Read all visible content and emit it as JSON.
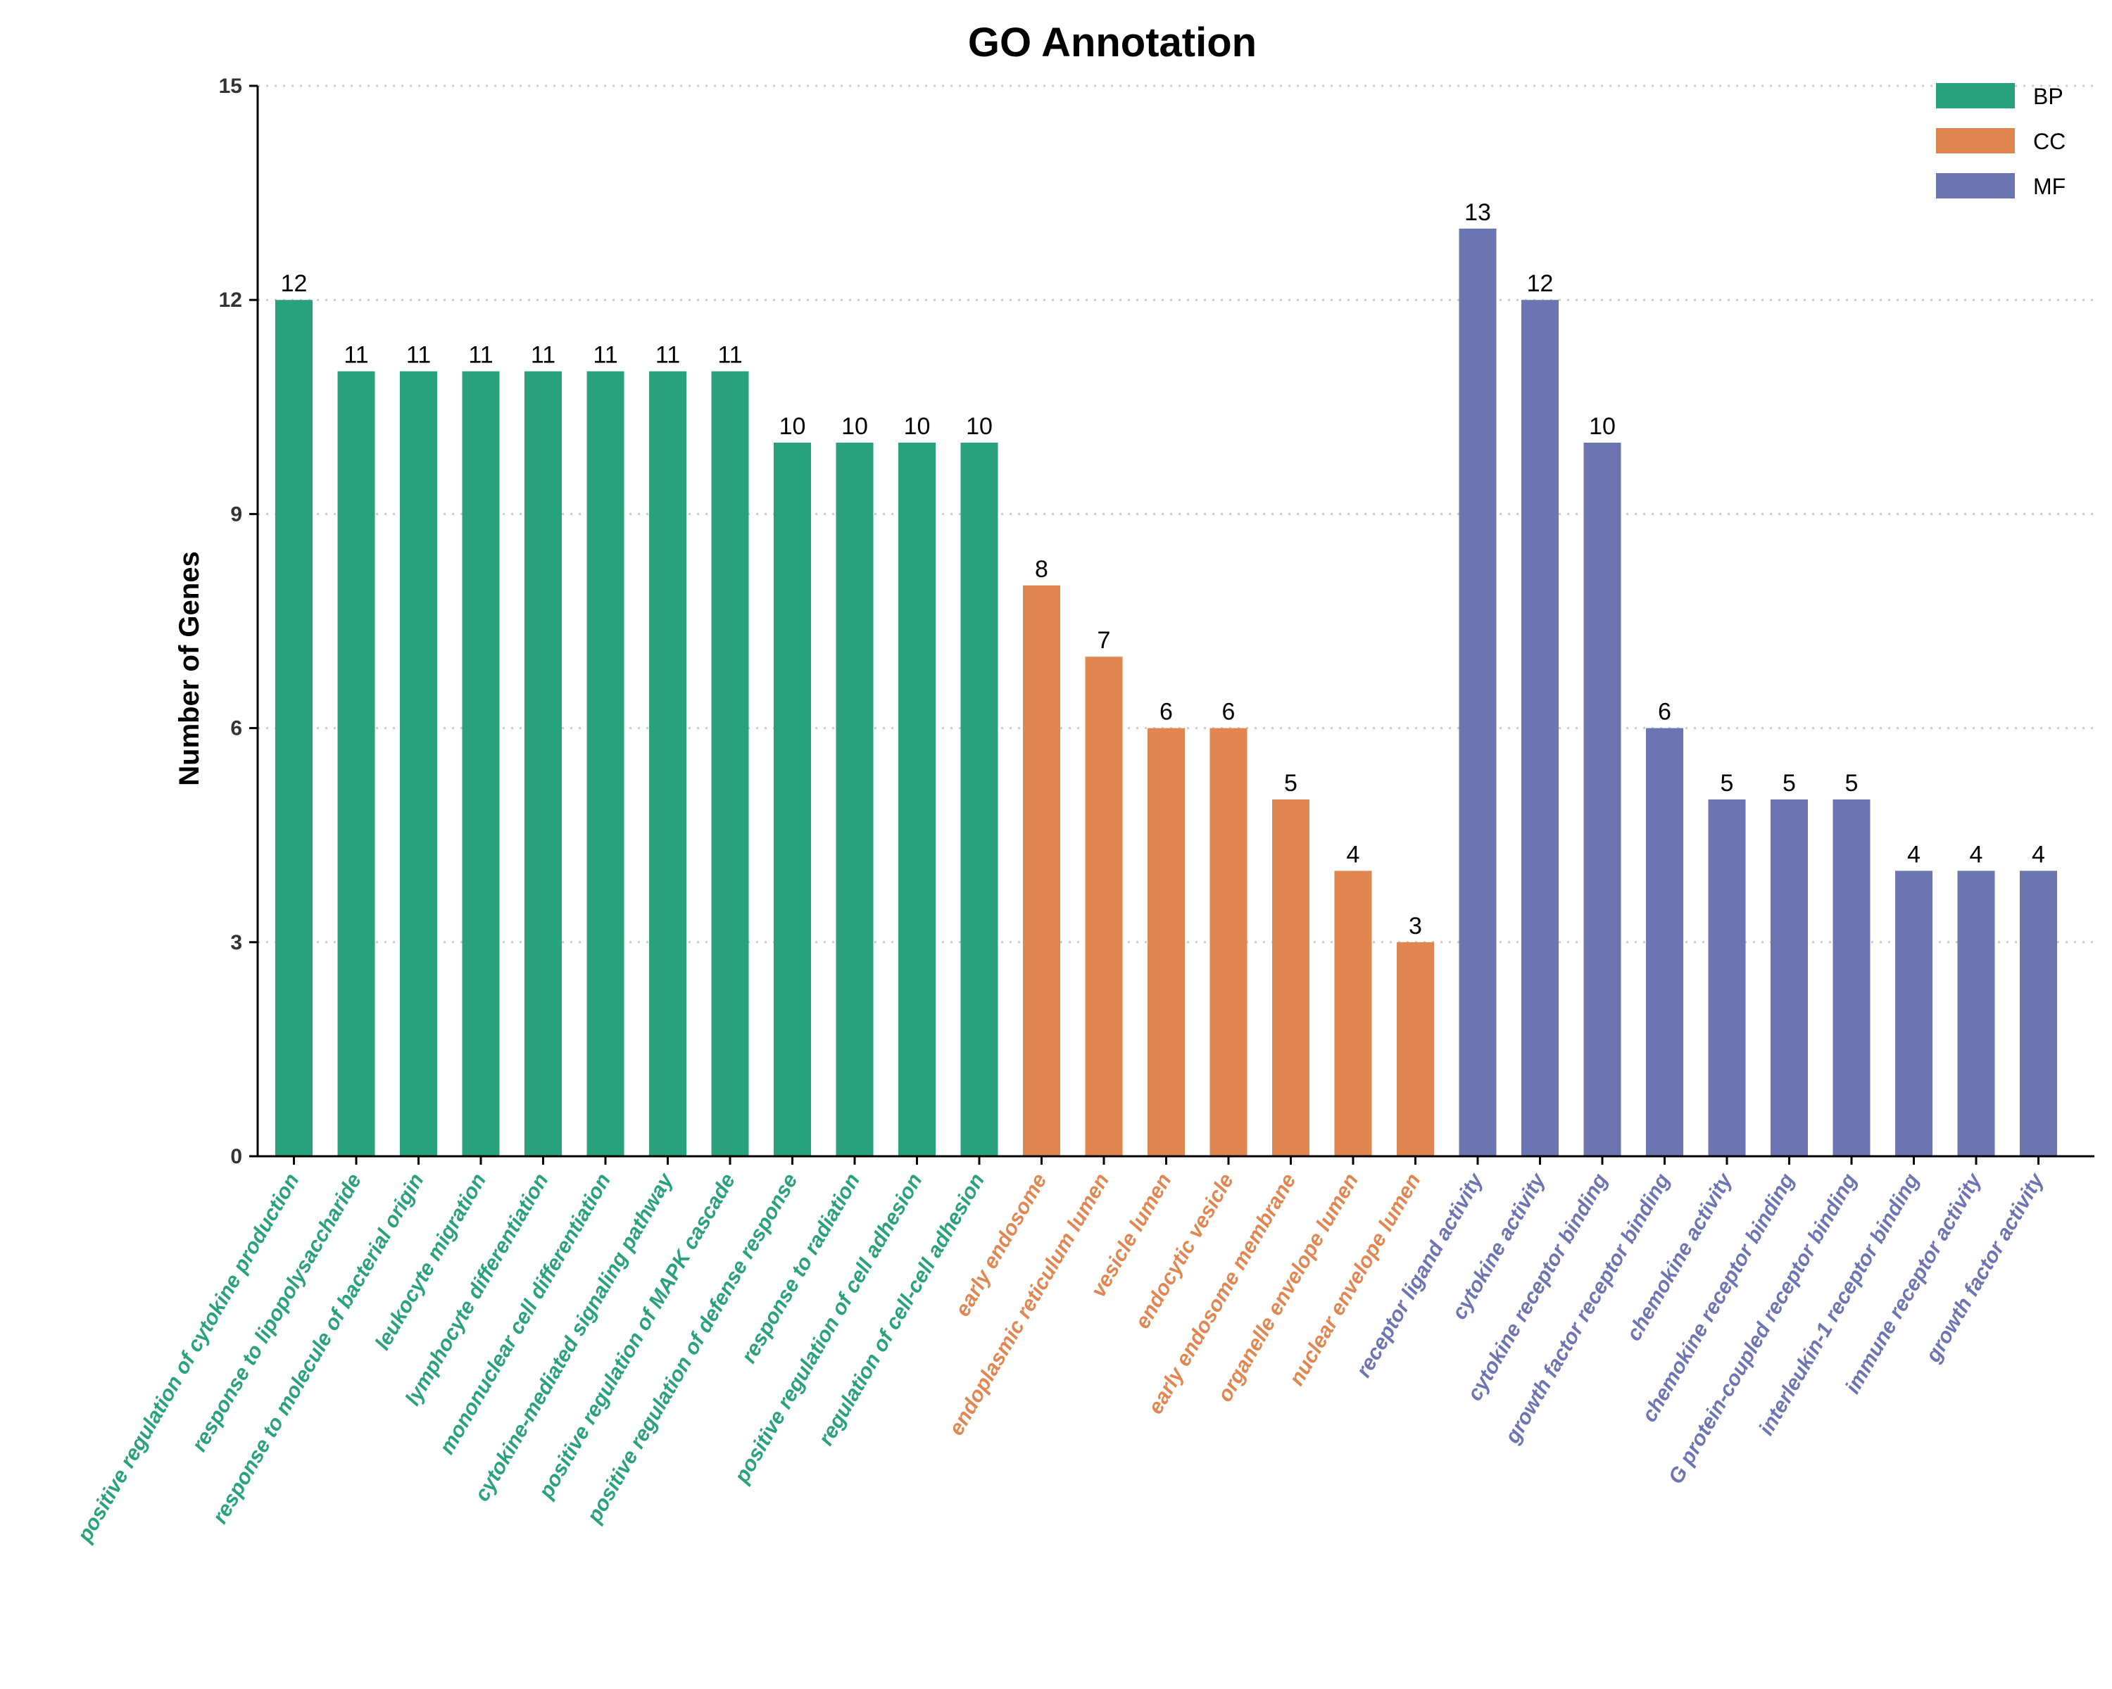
{
  "chart_data": {
    "type": "bar",
    "title": "GO Annotation",
    "xlabel": "",
    "ylabel": "Number of Genes",
    "ylim": [
      0,
      15
    ],
    "yticks": [
      0,
      3,
      6,
      9,
      12,
      15
    ],
    "grid": "horizontal-dotted",
    "legend_position": "top-right",
    "colors": {
      "BP": "#28a17c",
      "CC": "#e28651",
      "MF": "#6c74b2"
    },
    "series": [
      {
        "name": "BP",
        "categories": [
          "positive regulation of cytokine production",
          "response to lipopolysaccharide",
          "response to molecule of bacterial origin",
          "leukocyte migration",
          "lymphocyte differentiation",
          "mononuclear cell differentiation",
          "cytokine-mediated signaling pathway",
          "positive regulation of MAPK cascade",
          "positive regulation of defense response",
          "response to radiation",
          "positive regulation of cell adhesion",
          "regulation of cell-cell adhesion"
        ],
        "values": [
          12,
          11,
          11,
          11,
          11,
          11,
          11,
          11,
          10,
          10,
          10,
          10
        ]
      },
      {
        "name": "CC",
        "categories": [
          "early endosome",
          "endoplasmic reticulum lumen",
          "vesicle lumen",
          "endocytic vesicle",
          "early endosome membrane",
          "organelle envelope lumen",
          "nuclear envelope lumen"
        ],
        "values": [
          8,
          7,
          6,
          6,
          5,
          4,
          3
        ]
      },
      {
        "name": "MF",
        "categories": [
          "receptor ligand activity",
          "cytokine activity",
          "cytokine receptor binding",
          "growth factor receptor binding",
          "chemokine activity",
          "chemokine receptor binding",
          "G protein-coupled receptor binding",
          "interleukin-1 receptor binding",
          "immune receptor activity",
          "growth factor activity"
        ],
        "values": [
          13,
          12,
          10,
          6,
          5,
          5,
          5,
          4,
          4,
          4
        ]
      }
    ]
  }
}
